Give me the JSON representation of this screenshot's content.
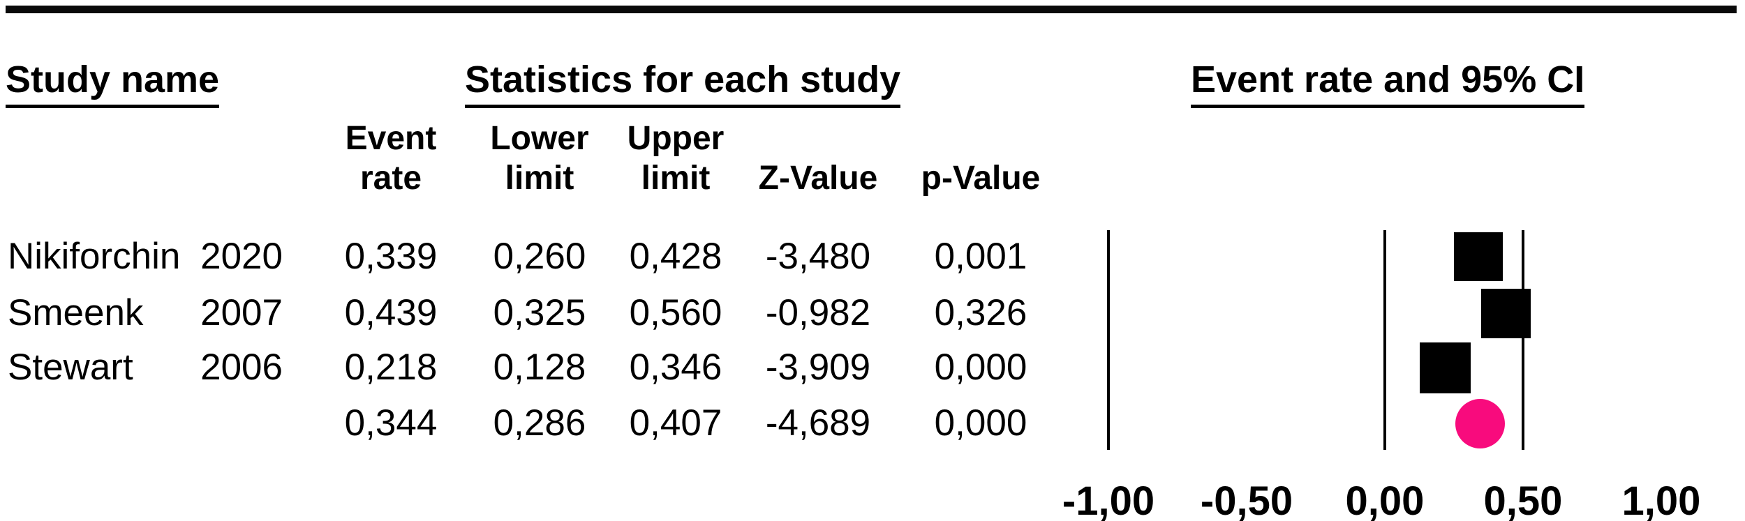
{
  "headers": {
    "study_name": "Study name",
    "statistics": "Statistics for each study",
    "plot": "Event rate and 95% CI"
  },
  "columns": {
    "study_event_line1": "Event",
    "study_event_line2": "rate",
    "lower_line1": "Lower",
    "lower_line2": "limit",
    "upper_line1": "Upper",
    "upper_line2": "limit",
    "z_value": "Z-Value",
    "p_value": "p-Value"
  },
  "chart_data": {
    "type": "scatter",
    "subtype": "forest-plot",
    "x_axis": {
      "range": [
        -1.0,
        1.0
      ],
      "tick_values": [
        -1.0,
        -0.5,
        0.0,
        0.5,
        1.0
      ],
      "ticks": [
        "-1,00",
        "-0,50",
        "0,00",
        "0,50",
        "1,00"
      ],
      "gridlines_at": [
        -1.0,
        0.0,
        0.5
      ]
    },
    "studies": [
      {
        "name": "Nikiforchin",
        "year": "2020",
        "event_rate": 0.339,
        "lower_limit": 0.26,
        "upper_limit": 0.428,
        "z_value": -3.48,
        "p_value": 0.001,
        "display": {
          "event_rate": "0,339",
          "lower_limit": "0,260",
          "upper_limit": "0,428",
          "z_value": "-3,480",
          "p_value": "0,001"
        }
      },
      {
        "name": "Smeenk",
        "year": "2007",
        "event_rate": 0.439,
        "lower_limit": 0.325,
        "upper_limit": 0.56,
        "z_value": -0.982,
        "p_value": 0.326,
        "display": {
          "event_rate": "0,439",
          "lower_limit": "0,325",
          "upper_limit": "0,560",
          "z_value": "-0,982",
          "p_value": "0,326"
        }
      },
      {
        "name": "Stewart",
        "year": "2006",
        "event_rate": 0.218,
        "lower_limit": 0.128,
        "upper_limit": 0.346,
        "z_value": -3.909,
        "p_value": 0.0,
        "display": {
          "event_rate": "0,218",
          "lower_limit": "0,128",
          "upper_limit": "0,346",
          "z_value": "-3,909",
          "p_value": "0,000"
        }
      }
    ],
    "summary": {
      "event_rate": 0.344,
      "lower_limit": 0.286,
      "upper_limit": 0.407,
      "z_value": -4.689,
      "p_value": 0.0,
      "display": {
        "event_rate": "0,344",
        "lower_limit": "0,286",
        "upper_limit": "0,407",
        "z_value": "-4,689",
        "p_value": "0,000"
      }
    },
    "marker_colors": {
      "study": "#000000",
      "summary": "#F80B7D"
    }
  }
}
